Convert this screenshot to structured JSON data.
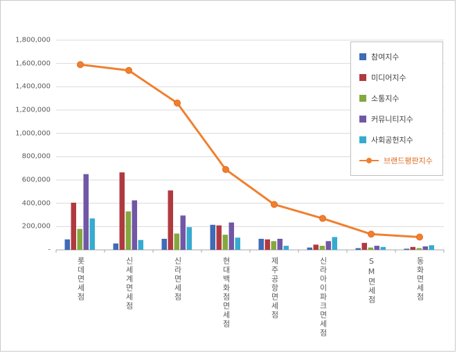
{
  "chart_data": {
    "type": "bar",
    "subtype": "grouped-bars-with-line-overlay",
    "title": "",
    "xlabel": "",
    "ylabel": "",
    "categories": [
      "롯데면세점",
      "신세계면세점",
      "신라면세점",
      "현대백화점면세점",
      "제주공항면세점",
      "신라아이파크면세점",
      "SM면세점",
      "동화면세점"
    ],
    "bar_series": [
      {
        "name": "참여지수",
        "color": "#3f6bb7",
        "values": [
          90000,
          55000,
          95000,
          215000,
          95000,
          20000,
          15000,
          10000
        ]
      },
      {
        "name": "미디어지수",
        "color": "#b03a3f",
        "values": [
          405000,
          665000,
          510000,
          210000,
          90000,
          45000,
          60000,
          25000
        ]
      },
      {
        "name": "소통지수",
        "color": "#84a83e",
        "values": [
          180000,
          330000,
          140000,
          130000,
          75000,
          35000,
          20000,
          15000
        ]
      },
      {
        "name": "커뮤니티지수",
        "color": "#7157a5",
        "values": [
          650000,
          425000,
          295000,
          235000,
          95000,
          75000,
          35000,
          30000
        ]
      },
      {
        "name": "사회공헌지수",
        "color": "#36abcf",
        "values": [
          270000,
          85000,
          195000,
          105000,
          35000,
          110000,
          25000,
          40000
        ]
      }
    ],
    "line_series": {
      "name": "브랜드평판지수",
      "color": "#f07f2e",
      "label_color": "#e26b1f",
      "values": [
        1590000,
        1540000,
        1260000,
        690000,
        390000,
        270000,
        135000,
        110000
      ]
    },
    "ylim": [
      0,
      1800000
    ],
    "ytick_step": 200000,
    "ytick_labels": [
      "-",
      "200,000",
      "400,000",
      "600,000",
      "800,000",
      "1,000,000",
      "1,200,000",
      "1,400,000",
      "1,600,000",
      "1,800,000"
    ],
    "grid": true,
    "legend_position": "top-right",
    "colors": {
      "gridline": "#d9d9d9",
      "axis": "#a6a6a6",
      "tick_label": "#595959",
      "legend_border": "#bfbfbf",
      "background": "#ffffff"
    }
  }
}
